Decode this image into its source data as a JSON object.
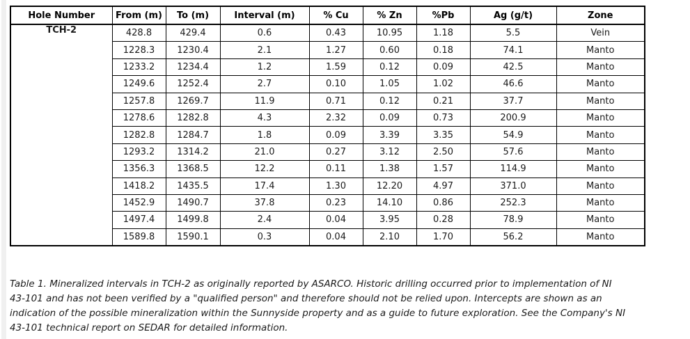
{
  "page": {
    "background_color": "#ffffff",
    "gutter_color": "#f0f0f0",
    "table_border_color": "#000000"
  },
  "table": {
    "columns": [
      "Hole Number",
      "From (m)",
      "To (m)",
      "Interval (m)",
      "% Cu",
      "% Zn",
      "%Pb",
      "Ag (g/t)",
      "Zone"
    ],
    "hole_number": "TCH-2",
    "rows": [
      {
        "from": "428.8",
        "to": "429.4",
        "interval": "0.6",
        "cu": "0.43",
        "zn": "10.95",
        "pb": "1.18",
        "ag": "5.5",
        "zone": "Vein"
      },
      {
        "from": "1228.3",
        "to": "1230.4",
        "interval": "2.1",
        "cu": "1.27",
        "zn": "0.60",
        "pb": "0.18",
        "ag": "74.1",
        "zone": "Manto"
      },
      {
        "from": "1233.2",
        "to": "1234.4",
        "interval": "1.2",
        "cu": "1.59",
        "zn": "0.12",
        "pb": "0.09",
        "ag": "42.5",
        "zone": "Manto"
      },
      {
        "from": "1249.6",
        "to": "1252.4",
        "interval": "2.7",
        "cu": "0.10",
        "zn": "1.05",
        "pb": "1.02",
        "ag": "46.6",
        "zone": "Manto"
      },
      {
        "from": "1257.8",
        "to": "1269.7",
        "interval": "11.9",
        "cu": "0.71",
        "zn": "0.12",
        "pb": "0.21",
        "ag": "37.7",
        "zone": "Manto"
      },
      {
        "from": "1278.6",
        "to": "1282.8",
        "interval": "4.3",
        "cu": "2.32",
        "zn": "0.09",
        "pb": "0.73",
        "ag": "200.9",
        "zone": "Manto"
      },
      {
        "from": "1282.8",
        "to": "1284.7",
        "interval": "1.8",
        "cu": "0.09",
        "zn": "3.39",
        "pb": "3.35",
        "ag": "54.9",
        "zone": "Manto"
      },
      {
        "from": "1293.2",
        "to": "1314.2",
        "interval": "21.0",
        "cu": "0.27",
        "zn": "3.12",
        "pb": "2.50",
        "ag": "57.6",
        "zone": "Manto"
      },
      {
        "from": "1356.3",
        "to": "1368.5",
        "interval": "12.2",
        "cu": "0.11",
        "zn": "1.38",
        "pb": "1.57",
        "ag": "114.9",
        "zone": "Manto"
      },
      {
        "from": "1418.2",
        "to": "1435.5",
        "interval": "17.4",
        "cu": "1.30",
        "zn": "12.20",
        "pb": "4.97",
        "ag": "371.0",
        "zone": "Manto"
      },
      {
        "from": "1452.9",
        "to": "1490.7",
        "interval": "37.8",
        "cu": "0.23",
        "zn": "14.10",
        "pb": "0.86",
        "ag": "252.3",
        "zone": "Manto"
      },
      {
        "from": "1497.4",
        "to": "1499.8",
        "interval": "2.4",
        "cu": "0.04",
        "zn": "3.95",
        "pb": "0.28",
        "ag": "78.9",
        "zone": "Manto"
      },
      {
        "from": "1589.8",
        "to": "1590.1",
        "interval": "0.3",
        "cu": "0.04",
        "zn": "2.10",
        "pb": "1.70",
        "ag": "56.2",
        "zone": "Manto"
      }
    ]
  },
  "caption": {
    "lines": [
      "Table 1. Mineralized intervals in TCH-2 as originally reported by ASARCO. Historic drilling occurred prior to implementation of NI",
      "43-101 and has not been verified by a \"qualified person\" and therefore should not be relied upon. Intercepts are shown as an",
      "indication of the possible mineralization within the Sunnyside property and as a guide to future exploration. See the Company's NI",
      "43-101 technical report on SEDAR for detailed information."
    ]
  }
}
